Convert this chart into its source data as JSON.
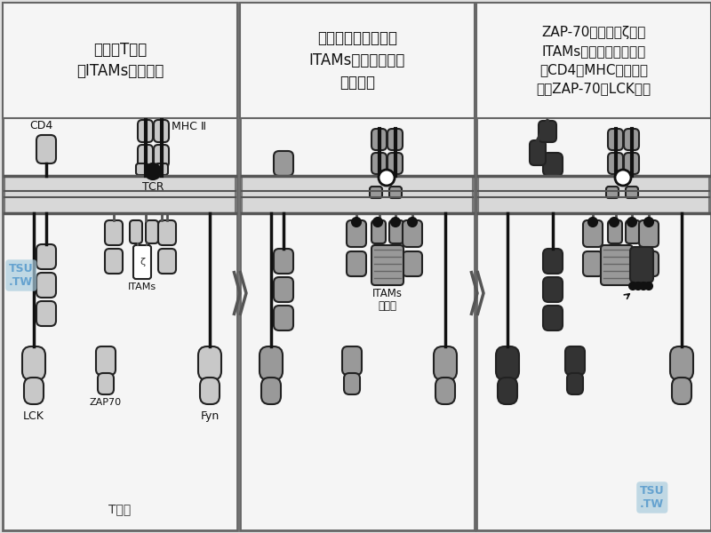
{
  "panel1_title": "休止期T细胞\n的ITAMs未磷酸化",
  "panel2_title": "配基与受体结合导致\nITAMs被受体相关激\n酶磷酸化",
  "panel3_title": "ZAP-70与磷酸化ζ链的\nITAMs结合而被磷酸化，\n当CD4与MHC配基结合\n时，ZAP-70被LCK激活",
  "lc": "#c8c8c8",
  "mc": "#999999",
  "dc": "#333333",
  "bc": "#111111",
  "ec": "#222222",
  "wc": "#ffffff",
  "bg": "#e0e0e0",
  "panel_bg": "#f5f5f5",
  "mem_bg": "#d8d8d8",
  "arrow_color": "#555555",
  "watermark_color": "#5599cc",
  "watermark_bg": "#aaccdd"
}
